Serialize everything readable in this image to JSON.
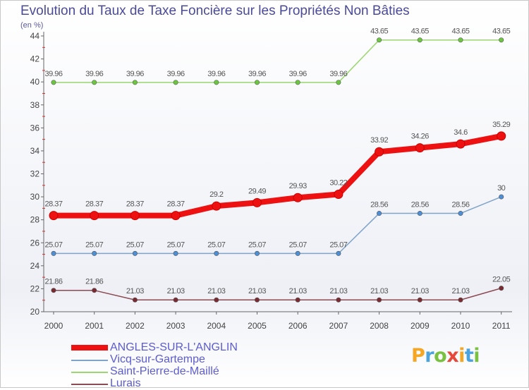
{
  "title": "Evolution du Taux de Taxe Foncière sur les Propriétés Non Bâties",
  "unit": "(en %)",
  "logo": {
    "letters": [
      "P",
      "r",
      "o",
      "x",
      "i",
      "t",
      "i"
    ],
    "colors": [
      "#f5a623",
      "#4aa3df",
      "#7ac142",
      "#e8483a",
      "#f5a623",
      "#4aa3df",
      "#7ac142"
    ]
  },
  "chart_data": {
    "type": "line",
    "title": "Evolution du Taux de Taxe Foncière sur les Propriétés Non Bâties",
    "ylabel": "(en %)",
    "xlabel": "",
    "x": [
      "2000",
      "2001",
      "2002",
      "2003",
      "2004",
      "2005",
      "2006",
      "2007",
      "2008",
      "2009",
      "2010",
      "2011"
    ],
    "ylim": [
      20,
      44
    ],
    "yticks": [
      "20",
      "22",
      "24",
      "26",
      "28",
      "30",
      "32",
      "34",
      "36",
      "38",
      "40",
      "42",
      "44"
    ],
    "grid": false,
    "legend": "bottom-left",
    "series": [
      {
        "name": "ANGLES-SUR-L'ANGLIN",
        "color": "#ee1111",
        "width": 8,
        "point_color": "#ee1111",
        "values": [
          28.37,
          28.37,
          28.37,
          28.37,
          29.2,
          29.49,
          29.93,
          30.22,
          33.92,
          34.26,
          34.6,
          35.29
        ],
        "labels": [
          "28.37",
          "28.37",
          "28.37",
          "28.37",
          "29.2",
          "29.49",
          "29.93",
          "30.22",
          "33.92",
          "34.26",
          "34.6",
          "35.29"
        ]
      },
      {
        "name": "Vicq-sur-Gartempe",
        "color": "#7fa3c9",
        "width": 1.5,
        "point_color": "#4d8fd6",
        "values": [
          25.07,
          25.07,
          25.07,
          25.07,
          25.07,
          25.07,
          25.07,
          25.07,
          28.56,
          28.56,
          28.56,
          30
        ],
        "labels": [
          "25.07",
          "25.07",
          "25.07",
          "25.07",
          "25.07",
          "25.07",
          "25.07",
          "25.07",
          "28.56",
          "28.56",
          "28.56",
          "30"
        ]
      },
      {
        "name": "Saint-Pierre-de-Maillé",
        "color": "#9bd66f",
        "width": 1.5,
        "point_color": "#6cc640",
        "values": [
          39.96,
          39.96,
          39.96,
          39.96,
          39.96,
          39.96,
          39.96,
          39.96,
          43.65,
          43.65,
          43.65,
          43.65
        ],
        "labels": [
          "39.96",
          "39.96",
          "39.96",
          "39.96",
          "39.96",
          "39.96",
          "39.96",
          "39.96",
          "43.65",
          "43.65",
          "43.65",
          "43.65"
        ]
      },
      {
        "name": "Lurais",
        "color": "#8c4a52",
        "width": 1.5,
        "point_color": "#7a2a30",
        "values": [
          21.86,
          21.86,
          21.03,
          21.03,
          21.03,
          21.03,
          21.03,
          21.03,
          21.03,
          21.03,
          21.03,
          22.05
        ],
        "labels": [
          "21.86",
          "21.86",
          "21.03",
          "21.03",
          "21.03",
          "21.03",
          "21.03",
          "21.03",
          "21.03",
          "21.03",
          "21.03",
          "22.05"
        ]
      }
    ]
  }
}
